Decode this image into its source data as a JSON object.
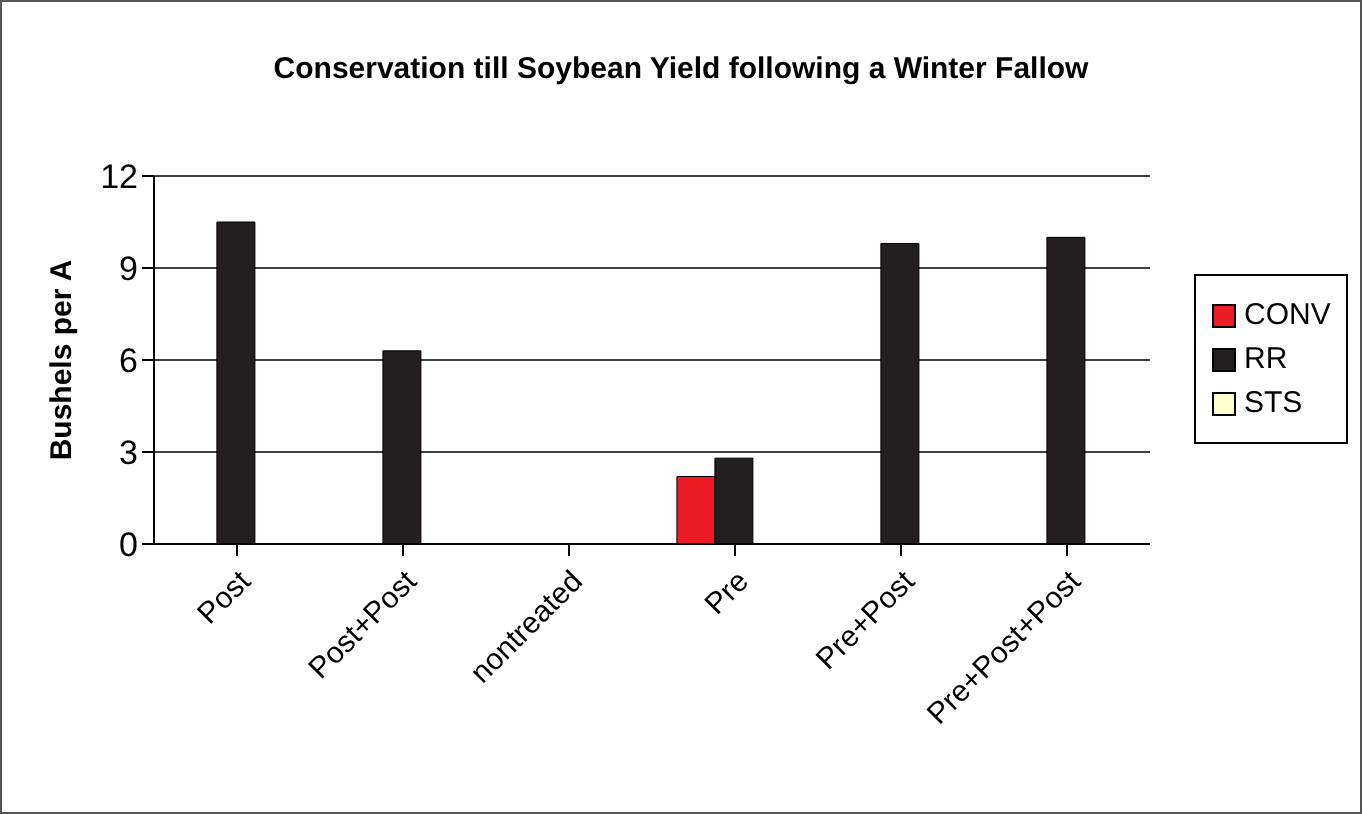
{
  "chart_data": {
    "type": "bar",
    "title": "Conservation till Soybean Yield following a Winter Fallow",
    "ylabel": "Bushels per A",
    "categories": [
      "Post",
      "Post+Post",
      "nontreated",
      "Pre",
      "Pre+Post",
      "Pre+Post+Post"
    ],
    "series": [
      {
        "name": "CONV",
        "color": "#ed1c24",
        "values": [
          null,
          null,
          null,
          2.2,
          null,
          null
        ]
      },
      {
        "name": "RR",
        "color": "#231f20",
        "values": [
          10.5,
          6.3,
          null,
          2.8,
          9.8,
          10.0
        ]
      },
      {
        "name": "STS",
        "color": "#ffffcc",
        "values": [
          null,
          null,
          null,
          null,
          null,
          null
        ]
      }
    ],
    "ylim": [
      0,
      12
    ],
    "yticks": [
      0,
      3,
      6,
      9,
      12
    ],
    "grid": "y",
    "legend": "right"
  }
}
